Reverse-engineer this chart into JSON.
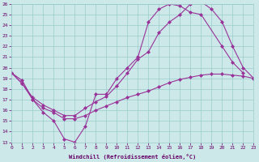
{
  "xlabel": "Windchill (Refroidissement éolien,°C)",
  "background_color": "#cce8e8",
  "line_color": "#993399",
  "ylim": [
    13,
    26
  ],
  "xlim": [
    0,
    23
  ],
  "yticks": [
    13,
    14,
    15,
    16,
    17,
    18,
    19,
    20,
    21,
    22,
    23,
    24,
    25,
    26
  ],
  "xticks": [
    0,
    1,
    2,
    3,
    4,
    5,
    6,
    7,
    8,
    9,
    10,
    11,
    12,
    13,
    14,
    15,
    16,
    17,
    18,
    19,
    20,
    21,
    22,
    23
  ],
  "line1_x": [
    0,
    1,
    2,
    3,
    4,
    5,
    6,
    7,
    8,
    9,
    10,
    11,
    12,
    13,
    14,
    15,
    16,
    17,
    18,
    20,
    21,
    22
  ],
  "line1_y": [
    19.5,
    18.8,
    17.0,
    15.8,
    15.0,
    13.3,
    13.0,
    14.5,
    17.5,
    17.5,
    19.0,
    20.0,
    21.0,
    24.3,
    25.5,
    26.0,
    25.8,
    25.2,
    25.0,
    22.0,
    20.5,
    19.5
  ],
  "line2_x": [
    0,
    1,
    2,
    3,
    4,
    5,
    6,
    7,
    8,
    9,
    10,
    11,
    12,
    13,
    14,
    15,
    16,
    17,
    18,
    19,
    20,
    21,
    22,
    23
  ],
  "line2_y": [
    19.5,
    18.5,
    17.2,
    16.5,
    16.0,
    15.5,
    15.5,
    16.2,
    16.8,
    17.3,
    18.3,
    19.5,
    20.8,
    21.5,
    23.3,
    24.3,
    25.0,
    26.0,
    26.2,
    25.5,
    24.3,
    22.0,
    20.0,
    19.0
  ],
  "line3_x": [
    0,
    1,
    2,
    3,
    4,
    5,
    6,
    7,
    8,
    9,
    10,
    11,
    12,
    13,
    14,
    15,
    16,
    17,
    18,
    19,
    20,
    21,
    22,
    23
  ],
  "line3_y": [
    19.5,
    18.5,
    17.0,
    16.2,
    15.8,
    15.2,
    15.2,
    15.5,
    16.0,
    16.4,
    16.8,
    17.2,
    17.5,
    17.8,
    18.2,
    18.6,
    18.9,
    19.1,
    19.3,
    19.4,
    19.4,
    19.3,
    19.2,
    19.0
  ]
}
